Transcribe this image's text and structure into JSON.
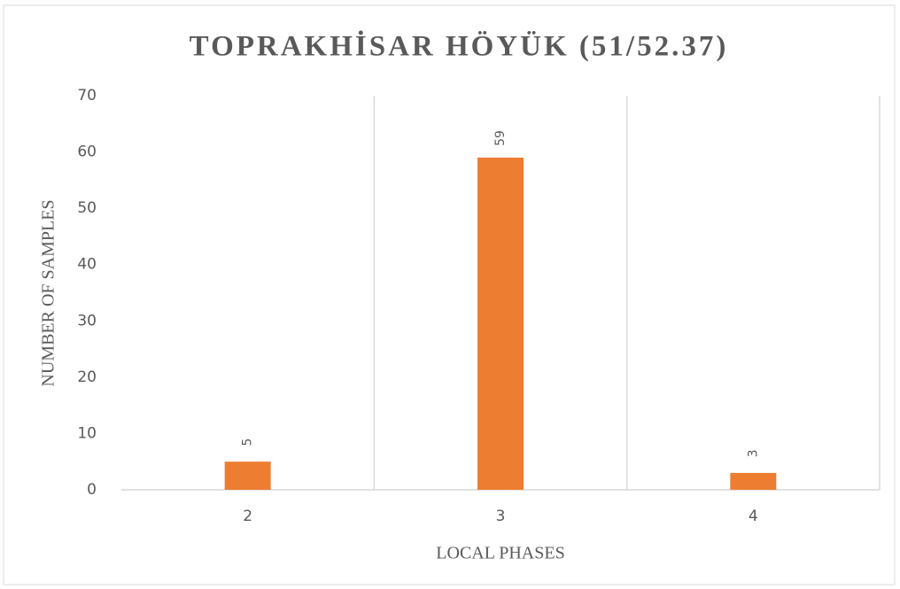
{
  "chart_data": {
    "type": "bar",
    "title": "TOPRAKHİSAR HÖYÜK (51/52.37)",
    "x_label": "LOCAL PHASES",
    "y_label": "NUMBER OF SAMPLES",
    "categories": [
      "2",
      "3",
      "4"
    ],
    "values": [
      5,
      59,
      3
    ],
    "color": "#ed7d31",
    "ylim": [
      0,
      70
    ],
    "yticks": [
      0,
      10,
      20,
      30,
      40,
      50,
      60,
      70
    ],
    "grid": false
  }
}
